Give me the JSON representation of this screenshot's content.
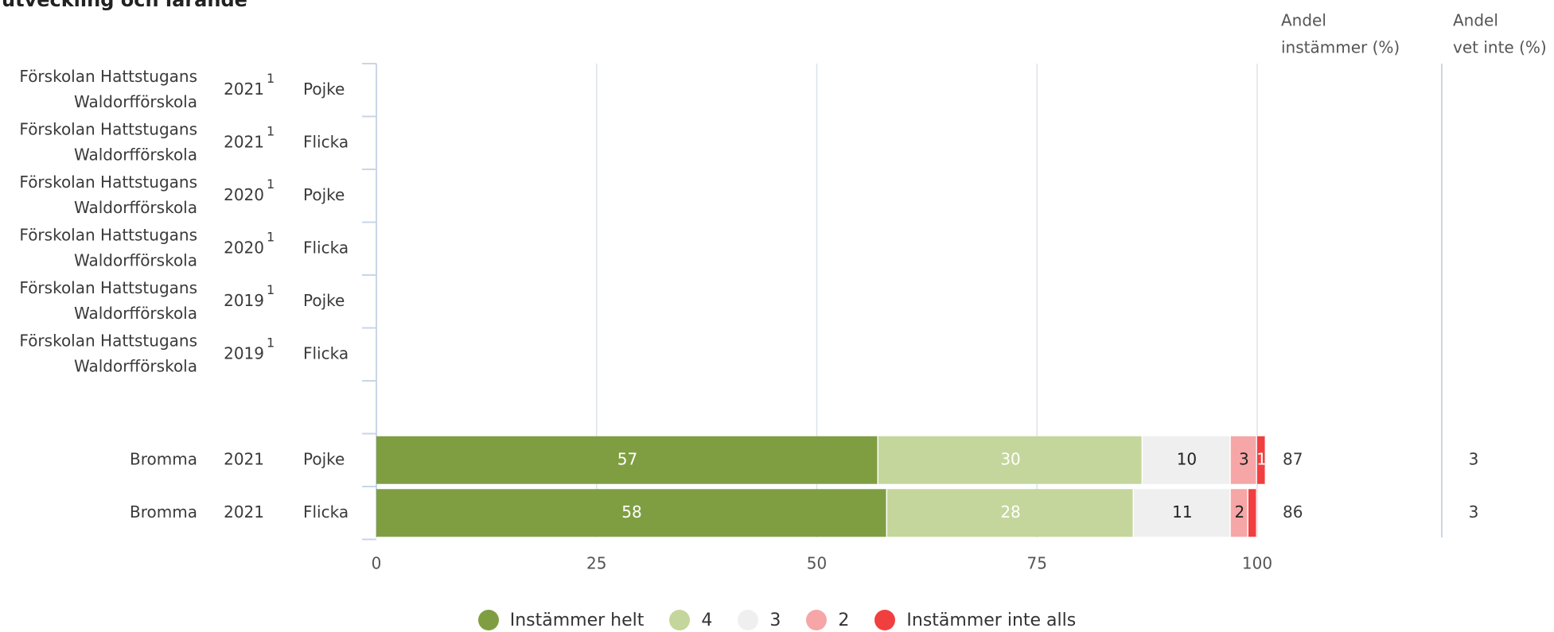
{
  "title_lines": [
    "",
    "utveckling och lärande"
  ],
  "column_headers": {
    "andel_instammer": [
      "Andel",
      "instämmer (%)"
    ],
    "andel_vet_inte": [
      "Andel",
      "vet inte (%)"
    ]
  },
  "chart_data": {
    "type": "bar",
    "orientation": "horizontal",
    "stacked": true,
    "xlim": [
      0,
      100
    ],
    "x_ticks": [
      0,
      25,
      50,
      75,
      100
    ],
    "grid": true,
    "legend_position": "bottom",
    "rows": [
      {
        "name": [
          "Förskolan Hattstugans",
          "Waldorfförskola"
        ],
        "year": "2021",
        "footnote": "1",
        "gender": "Pojke",
        "values": null,
        "andel_instammer": null,
        "andel_vet_inte": null
      },
      {
        "name": [
          "Förskolan Hattstugans",
          "Waldorfförskola"
        ],
        "year": "2021",
        "footnote": "1",
        "gender": "Flicka",
        "values": null,
        "andel_instammer": null,
        "andel_vet_inte": null
      },
      {
        "name": [
          "Förskolan Hattstugans",
          "Waldorfförskola"
        ],
        "year": "2020",
        "footnote": "1",
        "gender": "Pojke",
        "values": null,
        "andel_instammer": null,
        "andel_vet_inte": null
      },
      {
        "name": [
          "Förskolan Hattstugans",
          "Waldorfförskola"
        ],
        "year": "2020",
        "footnote": "1",
        "gender": "Flicka",
        "values": null,
        "andel_instammer": null,
        "andel_vet_inte": null
      },
      {
        "name": [
          "Förskolan Hattstugans",
          "Waldorfförskola"
        ],
        "year": "2019",
        "footnote": "1",
        "gender": "Pojke",
        "values": null,
        "andel_instammer": null,
        "andel_vet_inte": null
      },
      {
        "name": [
          "Förskolan Hattstugans",
          "Waldorfförskola"
        ],
        "year": "2019",
        "footnote": "1",
        "gender": "Flicka",
        "values": null,
        "andel_instammer": null,
        "andel_vet_inte": null
      },
      {
        "spacer": true
      },
      {
        "name": [
          "Bromma"
        ],
        "year": "2021",
        "footnote": "",
        "gender": "Pojke",
        "values": [
          57,
          30,
          10,
          3,
          1
        ],
        "labels": [
          "57",
          "30",
          "10",
          "3",
          "1"
        ],
        "andel_instammer": "87",
        "andel_vet_inte": "3"
      },
      {
        "name": [
          "Bromma"
        ],
        "year": "2021",
        "footnote": "",
        "gender": "Flicka",
        "values": [
          58,
          28,
          11,
          2,
          1
        ],
        "labels": [
          "58",
          "28",
          "11",
          "2",
          ""
        ],
        "andel_instammer": "86",
        "andel_vet_inte": "3"
      }
    ],
    "series": [
      {
        "name": "Instämmer helt",
        "color": "#7f9e42",
        "label_color": "#ffffff"
      },
      {
        "name": "4",
        "color": "#c4d69b",
        "label_color": "#ffffff"
      },
      {
        "name": "3",
        "color": "#efefef",
        "label_color": "#222222"
      },
      {
        "name": "2",
        "color": "#f6a6a6",
        "label_color": "#222222"
      },
      {
        "name": "Instämmer inte alls",
        "color": "#f13f3f",
        "label_color": "#ffffff"
      }
    ]
  },
  "legend": [
    {
      "label": "Instämmer helt",
      "color": "#7f9e42"
    },
    {
      "label": "4",
      "color": "#c4d69b"
    },
    {
      "label": "3",
      "color": "#efefef"
    },
    {
      "label": "2",
      "color": "#f6a6a6"
    },
    {
      "label": "Instämmer inte alls",
      "color": "#f13f3f"
    }
  ]
}
